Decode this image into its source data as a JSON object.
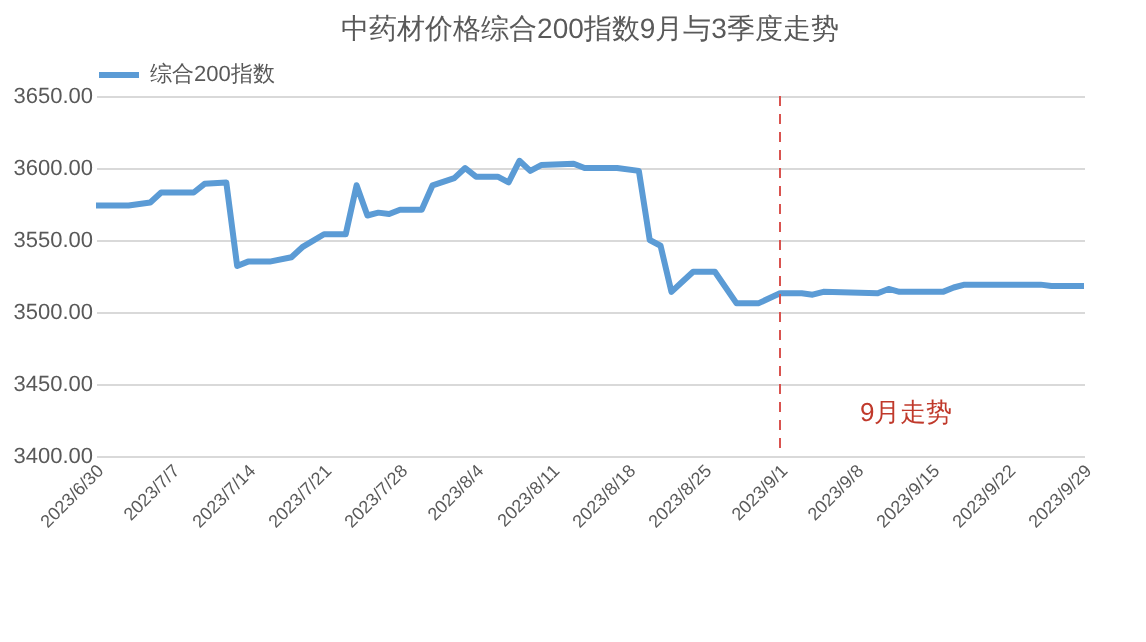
{
  "chart_data": {
    "type": "line",
    "title": "中药材价格综合200指数9月与3季度走势",
    "x": [
      "2023-06-30",
      "2023-07-03",
      "2023-07-05",
      "2023-07-06",
      "2023-07-09",
      "2023-07-10",
      "2023-07-12",
      "2023-07-13",
      "2023-07-14",
      "2023-07-16",
      "2023-07-18",
      "2023-07-19",
      "2023-07-21",
      "2023-07-23",
      "2023-07-24",
      "2023-07-25",
      "2023-07-26",
      "2023-07-27",
      "2023-07-28",
      "2023-07-30",
      "2023-07-31",
      "2023-08-02",
      "2023-08-03",
      "2023-08-04",
      "2023-08-06",
      "2023-08-07",
      "2023-08-08",
      "2023-08-09",
      "2023-08-10",
      "2023-08-13",
      "2023-08-14",
      "2023-08-17",
      "2023-08-19",
      "2023-08-20",
      "2023-08-21",
      "2023-08-22",
      "2023-08-23",
      "2023-08-24",
      "2023-08-26",
      "2023-08-28",
      "2023-08-30",
      "2023-09-01",
      "2023-09-03",
      "2023-09-04",
      "2023-09-05",
      "2023-09-10",
      "2023-09-11",
      "2023-09-12",
      "2023-09-16",
      "2023-09-17",
      "2023-09-18",
      "2023-09-25",
      "2023-09-26",
      "2023-09-29"
    ],
    "series": [
      {
        "name": "综合200指数",
        "color": "#5b9bd5",
        "values": [
          3574,
          3574,
          3576,
          3583,
          3583,
          3589,
          3590,
          3532,
          3535,
          3535,
          3538,
          3545,
          3554,
          3554,
          3588,
          3567,
          3569,
          3568,
          3571,
          3571,
          3588,
          3593,
          3600,
          3594,
          3594,
          3590,
          3605,
          3598,
          3602,
          3603,
          3600,
          3600,
          3598,
          3550,
          3546,
          3514,
          3521,
          3528,
          3528,
          3506,
          3506,
          3513,
          3513,
          3512,
          3514,
          3513,
          3516,
          3514,
          3514,
          3517,
          3519,
          3519,
          3518,
          3518
        ]
      }
    ],
    "xlim": [
      "2023-06-30",
      "2023-09-29"
    ],
    "xticks": [
      {
        "value": "2023-06-30",
        "label": "2023/6/30"
      },
      {
        "value": "2023-07-07",
        "label": "2023/7/7"
      },
      {
        "value": "2023-07-14",
        "label": "2023/7/14"
      },
      {
        "value": "2023-07-21",
        "label": "2023/7/21"
      },
      {
        "value": "2023-07-28",
        "label": "2023/7/28"
      },
      {
        "value": "2023-08-04",
        "label": "2023/8/4"
      },
      {
        "value": "2023-08-11",
        "label": "2023/8/11"
      },
      {
        "value": "2023-08-18",
        "label": "2023/8/18"
      },
      {
        "value": "2023-08-25",
        "label": "2023/8/25"
      },
      {
        "value": "2023-09-01",
        "label": "2023/9/1"
      },
      {
        "value": "2023-09-08",
        "label": "2023/9/8"
      },
      {
        "value": "2023-09-15",
        "label": "2023/9/15"
      },
      {
        "value": "2023-09-22",
        "label": "2023/9/22"
      },
      {
        "value": "2023-09-29",
        "label": "2023/9/29"
      }
    ],
    "ylim": [
      3400,
      3650
    ],
    "yticks": [
      {
        "value": 3400,
        "label": "3400.00"
      },
      {
        "value": 3450,
        "label": "3450.00"
      },
      {
        "value": 3500,
        "label": "3500.00"
      },
      {
        "value": 3550,
        "label": "3550.00"
      },
      {
        "value": 3600,
        "label": "3600.00"
      },
      {
        "value": 3650,
        "label": "3650.00"
      }
    ],
    "grid": "y",
    "legend": "top",
    "ref_lines": [
      {
        "axis": "x",
        "value": "2023-09-01",
        "color": "#d9534f",
        "line_style": "dashed"
      }
    ],
    "annotations": [
      "9月走势"
    ]
  }
}
